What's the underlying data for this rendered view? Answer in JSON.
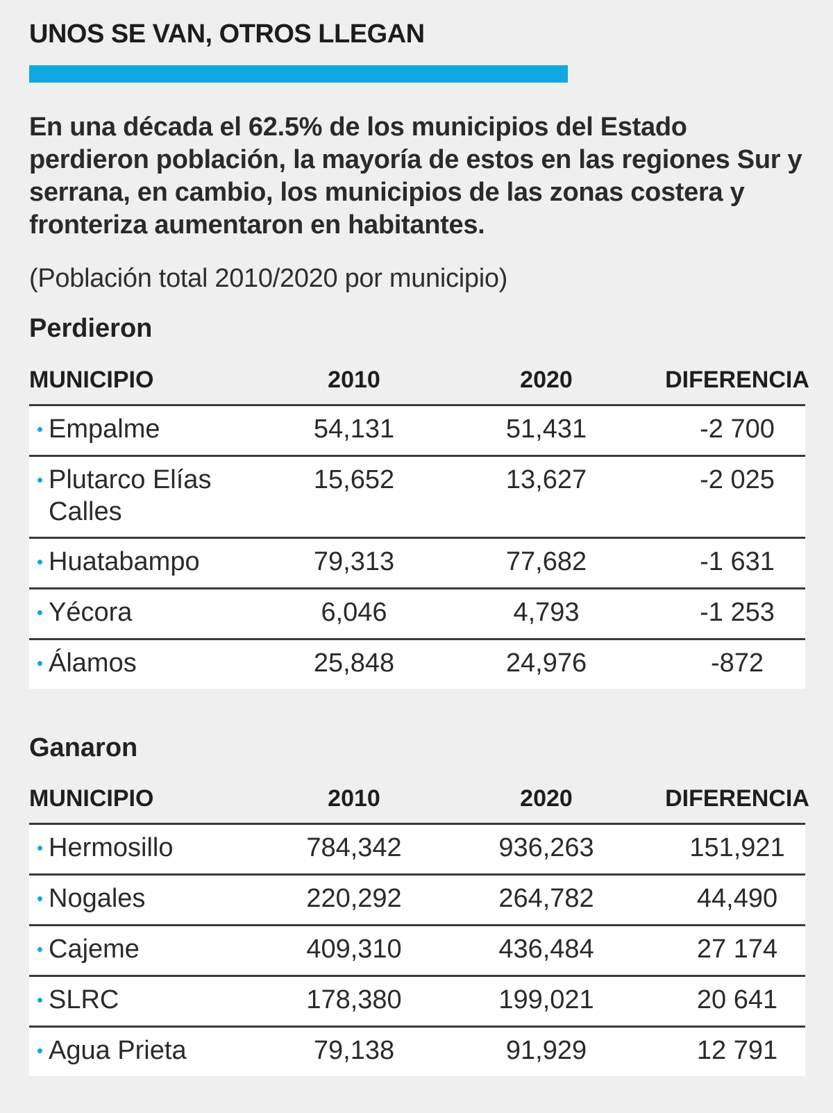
{
  "header": {
    "title": "UNOS SE VAN, OTROS LLEGAN",
    "accent_color": "#11a7e0",
    "lead": "En una década el 62.5% de los municipios del Estado perdieron población, la mayoría de estos en las regiones Sur y serrana, en cambio, los municipios de las zonas costera y fronteriza aumentaron en habitantes.",
    "note": "(Población total 2010/2020 por municipio)"
  },
  "columns": {
    "municipio": "MUNICIPIO",
    "y2010": "2010",
    "y2020": "2020",
    "diferencia": "DIFERENCIA"
  },
  "perdieron": {
    "title": "Perdieron",
    "rows": [
      {
        "municipio": "Empalme",
        "y2010": "54,131",
        "y2020": "51,431",
        "diferencia": "-2 700"
      },
      {
        "municipio": "Plutarco Elías Calles",
        "y2010": "15,652",
        "y2020": "13,627",
        "diferencia": "-2 025"
      },
      {
        "municipio": "Huatabampo",
        "y2010": "79,313",
        "y2020": "77,682",
        "diferencia": "-1 631"
      },
      {
        "municipio": "Yécora",
        "y2010": "6,046",
        "y2020": "4,793",
        "diferencia": "-1 253"
      },
      {
        "municipio": "Álamos",
        "y2010": "25,848",
        "y2020": "24,976",
        "diferencia": "-872"
      }
    ]
  },
  "ganaron": {
    "title": "Ganaron",
    "rows": [
      {
        "municipio": "Hermosillo",
        "y2010": "784,342",
        "y2020": "936,263",
        "diferencia": "151,921"
      },
      {
        "municipio": "Nogales",
        "y2010": "220,292",
        "y2020": "264,782",
        "diferencia": "44,490"
      },
      {
        "municipio": "Cajeme",
        "y2010": "409,310",
        "y2020": "436,484",
        "diferencia": "27 174"
      },
      {
        "municipio": "SLRC",
        "y2010": "178,380",
        "y2020": "199,021",
        "diferencia": "20 641"
      },
      {
        "municipio": "Agua Prieta",
        "y2010": "79,138",
        "y2020": "91,929",
        "diferencia": "12 791"
      }
    ]
  }
}
